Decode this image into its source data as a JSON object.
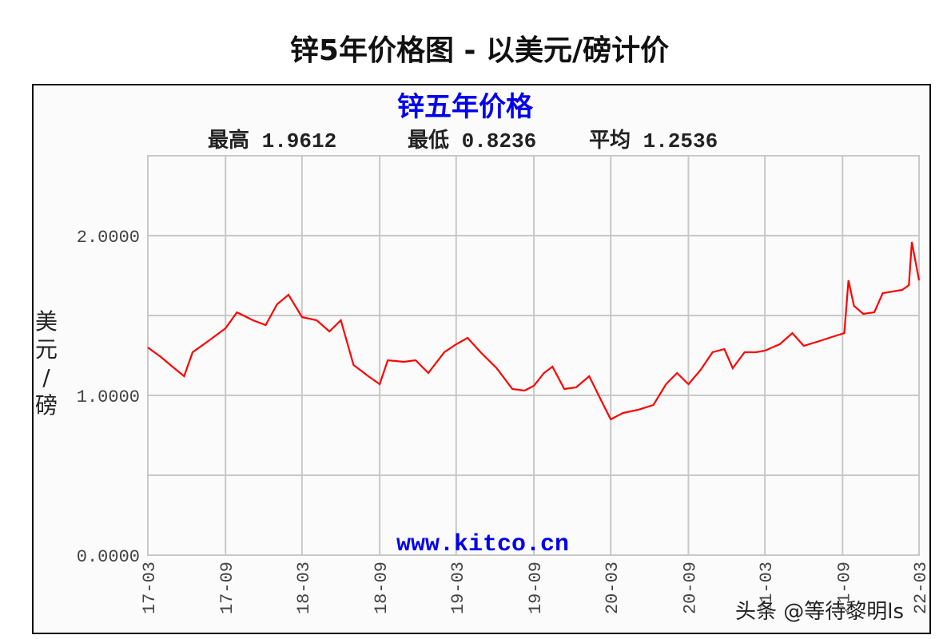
{
  "page_title": "锌5年价格图 - 以美元/磅计价",
  "watermark": "头条 @等待黎明ls",
  "chart_data": {
    "type": "line",
    "title": "锌五年价格",
    "stats": [
      {
        "label": "最高",
        "value": "1.9612"
      },
      {
        "label": "最低",
        "value": "0.8236"
      },
      {
        "label": "平均",
        "value": "1.2536"
      }
    ],
    "ylabel": "美元/磅",
    "source": "www.kitco.cn",
    "ylim": [
      0,
      2.5
    ],
    "yticks": [
      "0.0000",
      "1.0000",
      "2.0000"
    ],
    "ytick_values": [
      0,
      1,
      2
    ],
    "xlim": [
      "2017-03",
      "2022-03"
    ],
    "xticks": [
      "17-03",
      "17-09",
      "18-03",
      "18-09",
      "19-03",
      "19-09",
      "20-03",
      "20-09",
      "21-03",
      "21-09",
      "22-03"
    ],
    "grid": true,
    "colors": {
      "line": "#ff0000",
      "title": "#0000ee",
      "grid": "#c8c8c8"
    },
    "x": [
      "2017-03-01",
      "2017-04-01",
      "2017-04-28",
      "2017-05-26",
      "2017-06-15",
      "2017-07-22",
      "2017-09-01",
      "2017-09-28",
      "2017-11-05",
      "2017-12-05",
      "2018-01-01",
      "2018-01-28",
      "2018-03-01",
      "2018-04-05",
      "2018-05-05",
      "2018-06-01",
      "2018-07-01",
      "2018-08-05",
      "2018-09-01",
      "2018-09-20",
      "2018-10-28",
      "2018-11-25",
      "2018-12-25",
      "2019-02-01",
      "2019-03-01",
      "2019-03-28",
      "2019-04-28",
      "2019-06-05",
      "2019-07-12",
      "2019-08-10",
      "2019-09-01",
      "2019-09-25",
      "2019-10-15",
      "2019-11-12",
      "2019-12-10",
      "2020-01-10",
      "2020-02-07",
      "2020-03-01",
      "2020-03-30",
      "2020-05-05",
      "2020-06-10",
      "2020-07-10",
      "2020-08-05",
      "2020-09-01",
      "2020-09-30",
      "2020-10-28",
      "2020-11-25",
      "2020-12-15",
      "2021-01-12",
      "2021-02-08",
      "2021-03-01",
      "2021-04-05",
      "2021-05-05",
      "2021-06-01",
      "2021-07-08",
      "2021-08-12",
      "2021-09-05",
      "2021-09-15",
      "2021-09-28",
      "2021-10-20",
      "2021-11-15",
      "2021-12-05",
      "2022-01-20",
      "2022-02-05",
      "2022-02-12",
      "2022-03-01"
    ],
    "y": [
      1.3,
      1.24,
      1.18,
      1.12,
      1.27,
      1.34,
      1.42,
      1.52,
      1.47,
      1.44,
      1.57,
      1.63,
      1.49,
      1.47,
      1.4,
      1.47,
      1.19,
      1.12,
      1.07,
      1.22,
      1.21,
      1.22,
      1.14,
      1.27,
      1.32,
      1.36,
      1.27,
      1.17,
      1.04,
      1.03,
      1.06,
      1.14,
      1.18,
      1.04,
      1.05,
      1.12,
      0.97,
      0.85,
      0.89,
      0.91,
      0.94,
      1.07,
      1.14,
      1.07,
      1.16,
      1.27,
      1.29,
      1.17,
      1.27,
      1.27,
      1.28,
      1.32,
      1.39,
      1.31,
      1.34,
      1.37,
      1.39,
      1.72,
      1.56,
      1.51,
      1.52,
      1.64,
      1.66,
      1.69,
      1.96,
      1.72
    ]
  }
}
